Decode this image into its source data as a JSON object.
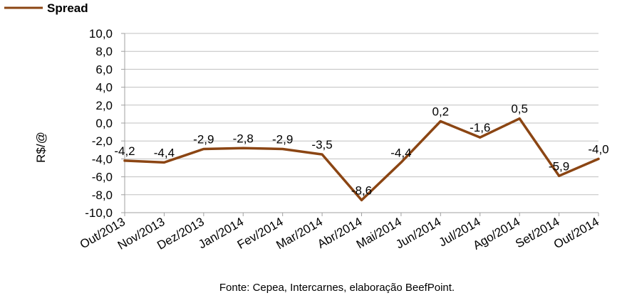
{
  "chart_data": {
    "type": "line",
    "categories": [
      "Out/2013",
      "Nov/2013",
      "Dez/2013",
      "Jan/2014",
      "Fev/2014",
      "Mar/2014",
      "Abr/2014",
      "Mai/2014",
      "Jun/2014",
      "Jul/2014",
      "Ago/2014",
      "Set/2014",
      "Out/2014"
    ],
    "series": [
      {
        "name": "Spread",
        "values": [
          -4.2,
          -4.4,
          -2.9,
          -2.8,
          -2.9,
          -3.5,
          -8.6,
          -4.4,
          0.2,
          -1.6,
          0.5,
          -5.9,
          -4.0
        ],
        "data_labels": [
          "-4,2",
          "-4,4",
          "-2,9",
          "-2,8",
          "-2,9",
          "-3,5",
          "-8,6",
          "-4,4",
          "0,2",
          "-1,6",
          "0,5",
          "-5,9",
          "-4,0"
        ],
        "color": "#8B4513"
      }
    ],
    "title": "",
    "xlabel": "",
    "ylabel": "R$/@",
    "ylim": [
      -10,
      10
    ],
    "yticks": [
      10,
      8,
      6,
      4,
      2,
      0,
      -2,
      -4,
      -6,
      -8,
      -10
    ],
    "ytick_labels": [
      "10,0",
      "8,0",
      "6,0",
      "4,0",
      "2,0",
      "0,0",
      "-2,0",
      "-4,0",
      "-6,0",
      "-8,0",
      "-10,0"
    ],
    "grid": true,
    "legend_position": "top-left",
    "gridline_color": "#c0c0c0",
    "axis_color": "#a0a0a0"
  },
  "source_note": "Fonte: Cepea, Intercarnes, elaboração BeefPoint."
}
